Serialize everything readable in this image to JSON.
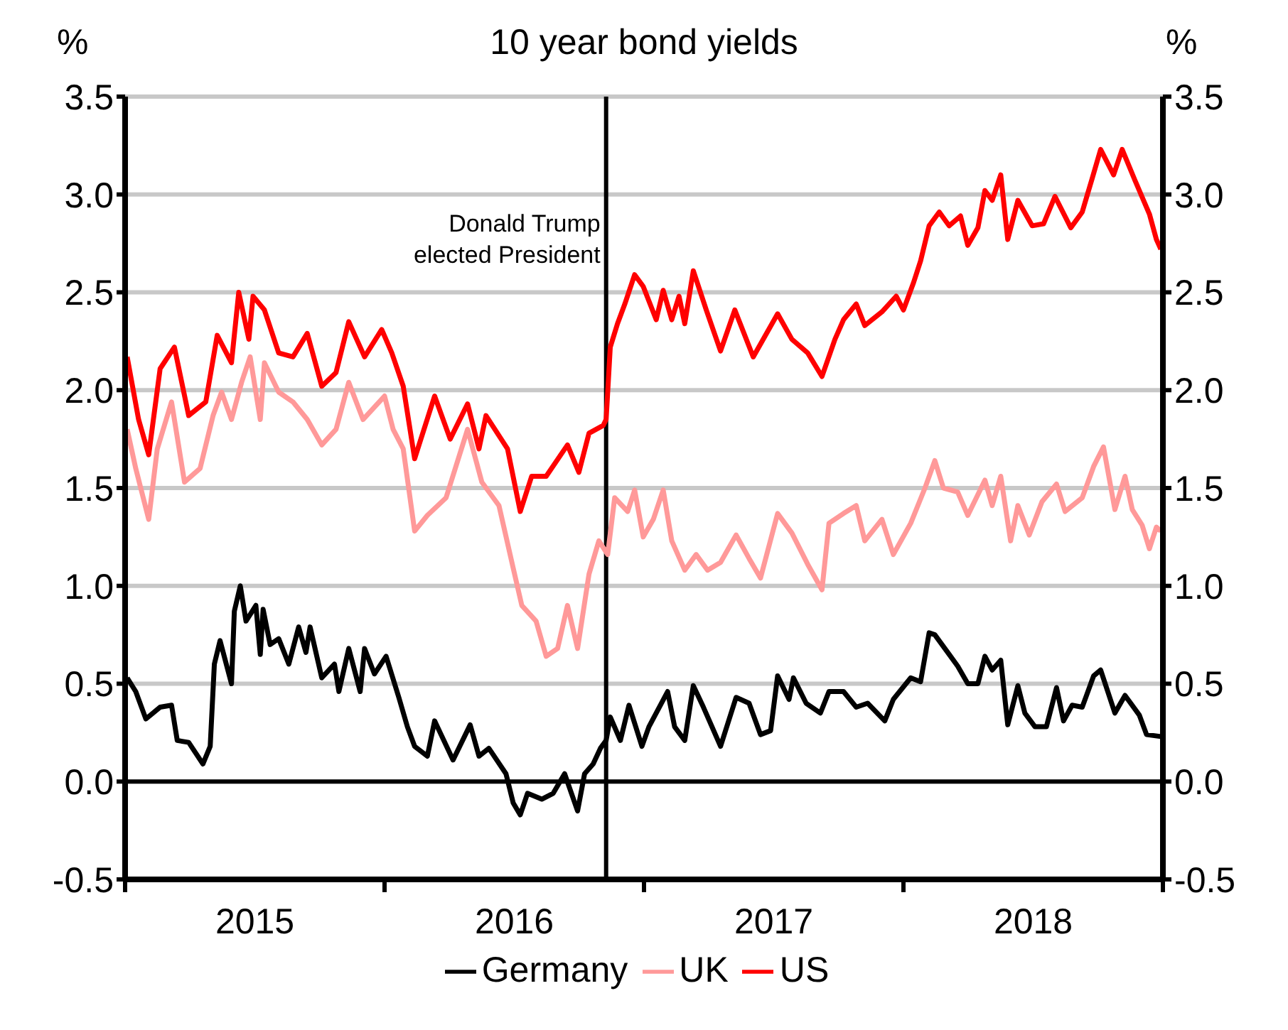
{
  "chart_data": {
    "type": "line",
    "title": "10 year bond yields",
    "ylabel": "%",
    "y2label": "%",
    "xlim": [
      2015,
      2019
    ],
    "xticks": [
      {
        "value": 2015,
        "label": null
      },
      {
        "value": 2015.5,
        "label": "2015"
      },
      {
        "value": 2016,
        "label": null
      },
      {
        "value": 2016.5,
        "label": "2016"
      },
      {
        "value": 2017,
        "label": null
      },
      {
        "value": 2017.5,
        "label": "2017"
      },
      {
        "value": 2018,
        "label": null
      },
      {
        "value": 2018.5,
        "label": "2018"
      },
      {
        "value": 2019,
        "label": null
      }
    ],
    "ylim": [
      -0.5,
      3.5
    ],
    "yticks": [
      -0.5,
      {
        "value": 0,
        "label": "0.0"
      },
      0.5,
      {
        "value": 1,
        "label": "1.0"
      },
      1.5,
      {
        "value": 2,
        "label": "2.0"
      },
      2.5,
      {
        "value": 3,
        "label": "3.0"
      },
      3.5
    ],
    "y2lim": [
      -0.5,
      3.5
    ],
    "y2ticks": [
      -0.5,
      {
        "value": 0,
        "label": "0.0"
      },
      0.5,
      {
        "value": 1,
        "label": "1.0"
      },
      1.5,
      {
        "value": 2,
        "label": "2.0"
      },
      2.5,
      {
        "value": 3,
        "label": "3.0"
      },
      3.5
    ],
    "grid": "y",
    "legend": "bottom",
    "marker": "none",
    "line_style": "solid",
    "ref_lines": [
      {
        "axis": "x",
        "value": 2016.854,
        "label": "Donald Trump\nelected President",
        "color": "#000000"
      },
      {
        "axis": "y",
        "value": 0,
        "color": "#000000"
      }
    ],
    "series": [
      {
        "name": "Germany",
        "color": "#000000",
        "x": [
          2015.008,
          2015.041,
          2015.08,
          2015.135,
          2015.179,
          2015.201,
          2015.245,
          2015.3,
          2015.328,
          2015.344,
          2015.366,
          2015.41,
          2015.421,
          2015.444,
          2015.466,
          2015.504,
          2015.521,
          2015.532,
          2015.559,
          2015.592,
          2015.631,
          2015.669,
          2015.697,
          2015.713,
          2015.758,
          2015.807,
          2015.824,
          2015.862,
          2015.906,
          2015.923,
          2015.961,
          2016.006,
          2016.055,
          2016.088,
          2016.116,
          2016.165,
          2016.193,
          2016.264,
          2016.33,
          2016.364,
          2016.402,
          2016.468,
          2016.496,
          2016.523,
          2016.551,
          2016.606,
          2016.65,
          2016.694,
          2016.744,
          2016.771,
          2016.804,
          2016.832,
          2016.854,
          2016.87,
          2016.909,
          2016.942,
          2016.992,
          2017.019,
          2017.091,
          2017.118,
          2017.157,
          2017.19,
          2017.229,
          2017.295,
          2017.355,
          2017.405,
          2017.449,
          2017.488,
          2017.515,
          2017.559,
          2017.576,
          2017.625,
          2017.68,
          2017.713,
          2017.769,
          2017.818,
          2017.862,
          2017.928,
          2017.961,
          2018.028,
          2018.066,
          2018.099,
          2018.121,
          2018.176,
          2018.209,
          2018.248,
          2018.287,
          2018.314,
          2018.342,
          2018.375,
          2018.402,
          2018.441,
          2018.468,
          2018.507,
          2018.551,
          2018.59,
          2018.617,
          2018.65,
          2018.689,
          2018.733,
          2018.76,
          2018.815,
          2018.854,
          2018.909,
          2018.937,
          2018.992
        ],
        "values": [
          0.53,
          0.46,
          0.32,
          0.38,
          0.39,
          0.21,
          0.2,
          0.09,
          0.18,
          0.6,
          0.72,
          0.5,
          0.87,
          1.0,
          0.82,
          0.9,
          0.65,
          0.88,
          0.7,
          0.73,
          0.6,
          0.79,
          0.66,
          0.79,
          0.53,
          0.6,
          0.46,
          0.68,
          0.46,
          0.68,
          0.55,
          0.64,
          0.43,
          0.28,
          0.18,
          0.13,
          0.31,
          0.11,
          0.29,
          0.13,
          0.17,
          0.04,
          -0.11,
          -0.17,
          -0.06,
          -0.09,
          -0.06,
          0.04,
          -0.15,
          0.04,
          0.09,
          0.17,
          0.21,
          0.33,
          0.21,
          0.39,
          0.18,
          0.28,
          0.46,
          0.28,
          0.21,
          0.49,
          0.38,
          0.18,
          0.43,
          0.4,
          0.24,
          0.26,
          0.54,
          0.42,
          0.53,
          0.4,
          0.35,
          0.46,
          0.46,
          0.38,
          0.4,
          0.31,
          0.42,
          0.53,
          0.51,
          0.76,
          0.75,
          0.65,
          0.59,
          0.5,
          0.5,
          0.64,
          0.57,
          0.62,
          0.29,
          0.49,
          0.35,
          0.28,
          0.28,
          0.48,
          0.31,
          0.39,
          0.38,
          0.54,
          0.57,
          0.35,
          0.44,
          0.34,
          0.24,
          0.23
        ]
      },
      {
        "name": "UK",
        "color": "#ff9999",
        "x": [
          2015.008,
          2015.041,
          2015.091,
          2015.124,
          2015.179,
          2015.229,
          2015.289,
          2015.339,
          2015.372,
          2015.41,
          2015.449,
          2015.482,
          2015.521,
          2015.537,
          2015.592,
          2015.647,
          2015.702,
          2015.758,
          2015.813,
          2015.862,
          2015.917,
          2016.0,
          2016.033,
          2016.072,
          2016.116,
          2016.165,
          2016.237,
          2016.32,
          2016.375,
          2016.441,
          2016.496,
          2016.529,
          2016.584,
          2016.623,
          2016.667,
          2016.705,
          2016.744,
          2016.788,
          2016.826,
          2016.86,
          2016.887,
          2016.937,
          2016.964,
          2016.997,
          2017.036,
          2017.074,
          2017.107,
          2017.157,
          2017.201,
          2017.245,
          2017.295,
          2017.355,
          2017.405,
          2017.449,
          2017.515,
          2017.57,
          2017.631,
          2017.686,
          2017.713,
          2017.769,
          2017.818,
          2017.851,
          2017.917,
          2017.961,
          2018.028,
          2018.083,
          2018.121,
          2018.154,
          2018.209,
          2018.248,
          2018.314,
          2018.342,
          2018.375,
          2018.413,
          2018.441,
          2018.485,
          2018.534,
          2018.59,
          2018.623,
          2018.689,
          2018.733,
          2018.771,
          2018.815,
          2018.854,
          2018.882,
          2018.92,
          2018.948,
          2018.975,
          2018.992
        ],
        "values": [
          1.8,
          1.6,
          1.34,
          1.7,
          1.94,
          1.53,
          1.6,
          1.87,
          1.99,
          1.85,
          2.04,
          2.17,
          1.85,
          2.14,
          1.99,
          1.94,
          1.85,
          1.72,
          1.8,
          2.04,
          1.85,
          1.97,
          1.8,
          1.7,
          1.28,
          1.36,
          1.45,
          1.8,
          1.53,
          1.41,
          1.09,
          0.9,
          0.82,
          0.64,
          0.68,
          0.9,
          0.68,
          1.06,
          1.23,
          1.16,
          1.45,
          1.38,
          1.49,
          1.25,
          1.34,
          1.49,
          1.23,
          1.08,
          1.16,
          1.08,
          1.12,
          1.26,
          1.14,
          1.04,
          1.37,
          1.27,
          1.11,
          0.98,
          1.32,
          1.37,
          1.41,
          1.23,
          1.34,
          1.16,
          1.32,
          1.5,
          1.64,
          1.5,
          1.48,
          1.36,
          1.54,
          1.41,
          1.56,
          1.23,
          1.41,
          1.26,
          1.43,
          1.52,
          1.38,
          1.45,
          1.61,
          1.71,
          1.39,
          1.56,
          1.39,
          1.31,
          1.19,
          1.3,
          1.28
        ]
      },
      {
        "name": "US",
        "color": "#ff0000",
        "x": [
          2015.008,
          2015.052,
          2015.091,
          2015.135,
          2015.19,
          2015.245,
          2015.311,
          2015.355,
          2015.41,
          2015.438,
          2015.477,
          2015.493,
          2015.537,
          2015.592,
          2015.647,
          2015.702,
          2015.758,
          2015.813,
          2015.862,
          2015.923,
          2015.989,
          2016.028,
          2016.072,
          2016.116,
          2016.193,
          2016.253,
          2016.32,
          2016.364,
          2016.391,
          2016.474,
          2016.523,
          2016.567,
          2016.623,
          2016.705,
          2016.749,
          2016.788,
          2016.843,
          2016.854,
          2016.87,
          2016.898,
          2016.926,
          2016.964,
          2016.997,
          2017.047,
          2017.074,
          2017.107,
          2017.135,
          2017.157,
          2017.19,
          2017.24,
          2017.295,
          2017.35,
          2017.421,
          2017.515,
          2017.57,
          2017.631,
          2017.686,
          2017.736,
          2017.769,
          2017.818,
          2017.851,
          2017.917,
          2017.972,
          2018.0,
          2018.039,
          2018.066,
          2018.099,
          2018.138,
          2018.176,
          2018.22,
          2018.248,
          2018.287,
          2018.314,
          2018.342,
          2018.375,
          2018.402,
          2018.441,
          2018.496,
          2018.54,
          2018.584,
          2018.645,
          2018.689,
          2018.727,
          2018.76,
          2018.81,
          2018.843,
          2018.893,
          2018.948,
          2018.975,
          2018.992
        ],
        "values": [
          2.17,
          1.85,
          1.67,
          2.11,
          2.22,
          1.87,
          1.94,
          2.28,
          2.14,
          2.5,
          2.26,
          2.48,
          2.41,
          2.19,
          2.17,
          2.29,
          2.02,
          2.09,
          2.35,
          2.17,
          2.31,
          2.19,
          2.02,
          1.65,
          1.97,
          1.75,
          1.93,
          1.7,
          1.87,
          1.7,
          1.38,
          1.56,
          1.56,
          1.72,
          1.58,
          1.78,
          1.82,
          1.85,
          2.22,
          2.34,
          2.44,
          2.59,
          2.53,
          2.36,
          2.51,
          2.36,
          2.48,
          2.34,
          2.61,
          2.41,
          2.2,
          2.41,
          2.17,
          2.39,
          2.26,
          2.19,
          2.07,
          2.26,
          2.36,
          2.44,
          2.33,
          2.4,
          2.48,
          2.41,
          2.55,
          2.66,
          2.84,
          2.91,
          2.84,
          2.89,
          2.74,
          2.83,
          3.02,
          2.97,
          3.1,
          2.77,
          2.97,
          2.84,
          2.85,
          2.99,
          2.83,
          2.91,
          3.08,
          3.23,
          3.1,
          3.23,
          3.07,
          2.9,
          2.77,
          2.72
        ]
      }
    ]
  }
}
